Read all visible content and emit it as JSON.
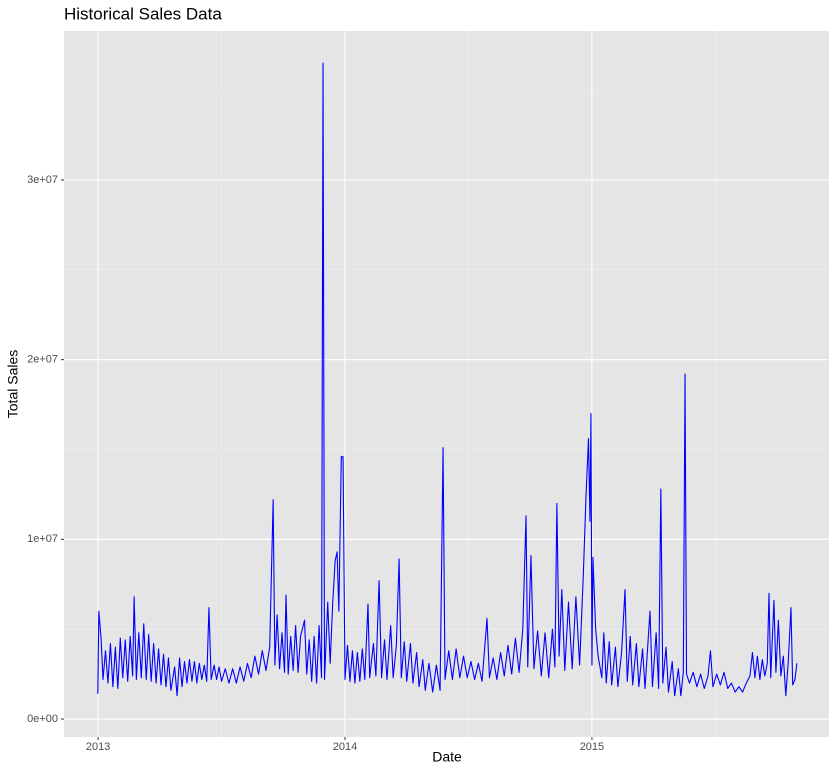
{
  "chart_data": {
    "type": "line",
    "title": "Historical Sales Data",
    "x_label": "Date",
    "y_label": "Total Sales",
    "color": "#0000ff",
    "grid": true,
    "xlim": [
      2012.862,
      2015.96
    ],
    "xticks": [
      2013,
      2014,
      2015
    ],
    "ylim": [
      -1000000,
      38290000
    ],
    "yticks": [
      {
        "value": 0,
        "label": "0e+00"
      },
      {
        "value": 10000000,
        "label": "1e+07"
      },
      {
        "value": 20000000,
        "label": "2e+07"
      },
      {
        "value": 30000000,
        "label": "3e+07"
      }
    ],
    "x": [
      2012.999,
      2013.003,
      2013.012,
      2013.02,
      2013.03,
      2013.04,
      2013.05,
      2013.06,
      2013.07,
      2013.08,
      2013.09,
      2013.1,
      2013.11,
      2013.12,
      2013.13,
      2013.14,
      2013.146,
      2013.155,
      2013.165,
      2013.175,
      2013.185,
      2013.195,
      2013.205,
      2013.215,
      2013.225,
      2013.235,
      2013.245,
      2013.255,
      2013.265,
      2013.275,
      2013.285,
      2013.295,
      2013.31,
      2013.32,
      2013.33,
      2013.34,
      2013.35,
      2013.36,
      2013.37,
      2013.38,
      2013.39,
      2013.4,
      2013.41,
      2013.42,
      2013.43,
      2013.44,
      2013.449,
      2013.458,
      2013.47,
      2013.48,
      2013.49,
      2013.5,
      2013.515,
      2013.53,
      2013.545,
      2013.56,
      2013.575,
      2013.59,
      2013.605,
      2013.62,
      2013.635,
      2013.65,
      2013.665,
      2013.68,
      2013.695,
      2013.709,
      2013.716,
      2013.725,
      2013.735,
      2013.745,
      2013.755,
      2013.761,
      2013.77,
      2013.78,
      2013.79,
      2013.8,
      2013.81,
      2013.82,
      2013.836,
      2013.845,
      2013.855,
      2013.865,
      2013.875,
      2013.885,
      2013.895,
      2013.905,
      2013.911,
      2013.917,
      2013.93,
      2013.94,
      2013.95,
      2013.96,
      2013.968,
      2013.975,
      2013.985,
      2013.992,
      2014.0,
      2014.01,
      2014.02,
      2014.03,
      2014.04,
      2014.05,
      2014.06,
      2014.07,
      2014.08,
      2014.093,
      2014.1,
      2014.115,
      2014.125,
      2014.138,
      2014.148,
      2014.16,
      2014.17,
      2014.185,
      2014.195,
      2014.208,
      2014.219,
      2014.228,
      2014.24,
      2014.25,
      2014.265,
      2014.275,
      2014.29,
      2014.3,
      2014.315,
      2014.325,
      2014.34,
      2014.355,
      2014.37,
      2014.385,
      2014.397,
      2014.405,
      2014.42,
      2014.435,
      2014.45,
      2014.465,
      2014.48,
      2014.495,
      2014.51,
      2014.525,
      2014.54,
      2014.555,
      2014.575,
      2014.585,
      2014.6,
      2014.615,
      2014.63,
      2014.645,
      2014.66,
      2014.675,
      2014.69,
      2014.705,
      2014.72,
      2014.733,
      2014.74,
      2014.753,
      2014.765,
      2014.78,
      2014.795,
      2014.81,
      2014.825,
      2014.84,
      2014.85,
      2014.858,
      2014.867,
      2014.878,
      2014.89,
      2014.905,
      2014.92,
      2014.935,
      2014.95,
      2014.965,
      2014.976,
      2014.986,
      2014.992,
      2014.996,
      2015.0,
      2015.004,
      2015.015,
      2015.025,
      2015.04,
      2015.048,
      2015.058,
      2015.07,
      2015.08,
      2015.095,
      2015.105,
      2015.12,
      2015.134,
      2015.143,
      2015.155,
      2015.165,
      2015.18,
      2015.19,
      2015.205,
      2015.215,
      2015.235,
      2015.245,
      2015.26,
      2015.27,
      2015.279,
      2015.287,
      2015.3,
      2015.31,
      2015.325,
      2015.335,
      2015.35,
      2015.36,
      2015.37,
      2015.377,
      2015.383,
      2015.395,
      2015.41,
      2015.425,
      2015.44,
      2015.455,
      2015.47,
      2015.48,
      2015.49,
      2015.505,
      2015.52,
      2015.535,
      2015.55,
      2015.565,
      2015.58,
      2015.595,
      2015.61,
      2015.625,
      2015.64,
      2015.65,
      2015.66,
      2015.67,
      2015.68,
      2015.69,
      2015.7,
      2015.71,
      2015.717,
      2015.724,
      2015.737,
      2015.745,
      2015.755,
      2015.765,
      2015.775,
      2015.785,
      2015.795,
      2015.806,
      2015.813,
      2015.822,
      2015.83
    ],
    "values": [
      1400000,
      6000000,
      4500000,
      2200000,
      3800000,
      2000000,
      4200000,
      1800000,
      4000000,
      1700000,
      4500000,
      2300000,
      4400000,
      2100000,
      4600000,
      2400000,
      6800000,
      2200000,
      4800000,
      2300000,
      5300000,
      2200000,
      4700000,
      2100000,
      4200000,
      2000000,
      3900000,
      1900000,
      3600000,
      1800000,
      3400000,
      1600000,
      2900000,
      1300000,
      3400000,
      1800000,
      3200000,
      2000000,
      3300000,
      2100000,
      3200000,
      2000000,
      3100000,
      2200000,
      3000000,
      2100000,
      6200000,
      2200000,
      3000000,
      2200000,
      2900000,
      2100000,
      2800000,
      2000000,
      2800000,
      2000000,
      2900000,
      2100000,
      3100000,
      2300000,
      3500000,
      2500000,
      3800000,
      2700000,
      4000000,
      12200000,
      3000000,
      5800000,
      2800000,
      4800000,
      2600000,
      6900000,
      2500000,
      4600000,
      2700000,
      5200000,
      2600000,
      4600000,
      5500000,
      2500000,
      4400000,
      2100000,
      4600000,
      2000000,
      5200000,
      2300000,
      36500000,
      2200000,
      6500000,
      3100000,
      6400000,
      8800000,
      9300000,
      6000000,
      14600000,
      14600000,
      2200000,
      4100000,
      2100000,
      3800000,
      2000000,
      3700000,
      2100000,
      3900000,
      2200000,
      6400000,
      2300000,
      4200000,
      2400000,
      7700000,
      2300000,
      4400000,
      2200000,
      5200000,
      2300000,
      4100000,
      8900000,
      2300000,
      4300000,
      2100000,
      4200000,
      2000000,
      3700000,
      1800000,
      3300000,
      1600000,
      3100000,
      1500000,
      3000000,
      1600000,
      15100000,
      2200000,
      3800000,
      2200000,
      3900000,
      2300000,
      3500000,
      2300000,
      3200000,
      2200000,
      3100000,
      2100000,
      5600000,
      2300000,
      3400000,
      2200000,
      3700000,
      2400000,
      4100000,
      2500000,
      4500000,
      2600000,
      5000000,
      11300000,
      2900000,
      9100000,
      2800000,
      4900000,
      2400000,
      4800000,
      2300000,
      5000000,
      2900000,
      12000000,
      3500000,
      7200000,
      2700000,
      6500000,
      2800000,
      6800000,
      3000000,
      8000000,
      12400000,
      15600000,
      11000000,
      17000000,
      3000000,
      9000000,
      5000000,
      3500000,
      2300000,
      4800000,
      2000000,
      4300000,
      1900000,
      4000000,
      1800000,
      3700000,
      7200000,
      2100000,
      4600000,
      1900000,
      4200000,
      1800000,
      3900000,
      1700000,
      6000000,
      1800000,
      4800000,
      1700000,
      12800000,
      2000000,
      4000000,
      1500000,
      3200000,
      1300000,
      2800000,
      1300000,
      2600000,
      19200000,
      2500000,
      2000000,
      2600000,
      1800000,
      2500000,
      1700000,
      2400000,
      3800000,
      1800000,
      2500000,
      1900000,
      2600000,
      1700000,
      2000000,
      1500000,
      1800000,
      1500000,
      2000000,
      2400000,
      3700000,
      2300000,
      3500000,
      2200000,
      3300000,
      2400000,
      3100000,
      7000000,
      2300000,
      6600000,
      2600000,
      5500000,
      2400000,
      3500000,
      1300000,
      3200000,
      6200000,
      1900000,
      2200000,
      3100000
    ]
  }
}
